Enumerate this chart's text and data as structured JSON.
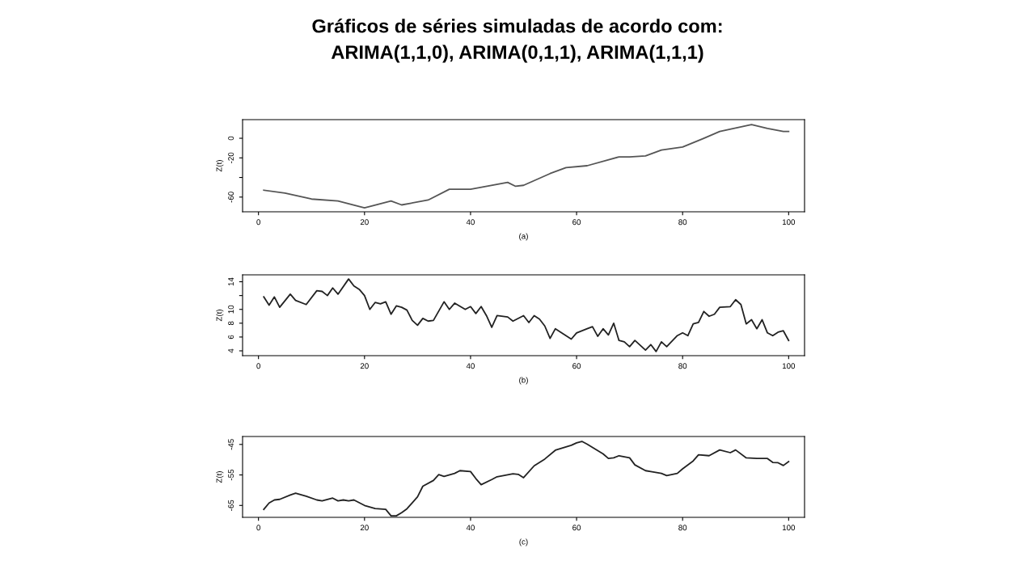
{
  "chart_data": [
    {
      "type": "line",
      "title": "Gráficos de séries simuladas de acordo com:\nARIMA(1,1,0), ARIMA(0,1,1), ARIMA(1,1,1)",
      "xlabel": "(a)",
      "ylabel": "Z(t)",
      "xlim": [
        -3,
        103
      ],
      "xticks": [
        0,
        20,
        40,
        60,
        80,
        100
      ],
      "ylim": [
        -75,
        19
      ],
      "yticks": [
        -60,
        {
          "value": -40,
          "label": null
        },
        -20,
        0
      ],
      "grid": false,
      "legend": false,
      "series": [
        {
          "color": "#555555",
          "x": [
            1,
            5,
            10,
            15,
            20,
            25,
            27,
            32,
            36,
            40,
            47,
            48.5,
            50,
            55,
            58,
            62,
            68,
            70,
            73,
            76,
            80,
            84,
            87,
            93,
            96,
            99,
            100
          ],
          "values": [
            -53,
            -56,
            -62,
            -64,
            -71,
            -64,
            -68,
            -63,
            -52,
            -52,
            -45,
            -49,
            -48,
            -36,
            -30,
            -28,
            -19,
            -19,
            -18,
            -12,
            -9,
            0,
            7,
            14,
            10,
            7,
            7
          ]
        }
      ]
    },
    {
      "type": "line",
      "xlabel": "(b)",
      "ylabel": "Z(t)",
      "xlim": [
        -3,
        103
      ],
      "xticks": [
        0,
        20,
        40,
        60,
        80,
        100
      ],
      "ylim": [
        3.3,
        15
      ],
      "yticks": [
        4,
        6,
        8,
        10,
        {
          "value": 12,
          "label": null
        },
        14
      ],
      "grid": false,
      "legend": false,
      "series": [
        {
          "color": "#222222",
          "x": [
            1,
            2,
            3,
            4,
            6,
            7,
            9,
            11,
            12,
            13,
            14,
            15,
            17,
            18,
            19,
            20,
            21,
            22,
            23,
            24,
            25,
            26,
            27,
            28,
            29,
            30,
            31,
            32,
            33,
            35,
            36,
            37,
            39,
            40,
            41,
            42,
            43,
            44,
            45,
            47,
            48,
            50,
            51,
            52,
            53,
            54,
            55,
            56,
            59,
            60,
            62,
            63,
            64,
            65,
            66,
            67,
            68,
            69,
            70,
            71,
            73,
            74,
            75,
            76,
            77,
            79,
            80,
            81,
            82,
            83,
            84,
            85,
            86,
            87,
            89,
            90,
            91,
            92,
            93,
            94,
            95,
            96,
            97,
            98,
            99,
            100
          ],
          "values": [
            11.8,
            10.6,
            11.8,
            10.3,
            12.2,
            11.3,
            10.7,
            12.7,
            12.6,
            12.0,
            13.1,
            12.2,
            14.4,
            13.4,
            12.9,
            12.0,
            10.0,
            11.0,
            10.8,
            11.1,
            9.3,
            10.5,
            10.3,
            9.9,
            8.4,
            7.7,
            8.7,
            8.3,
            8.4,
            11.1,
            10.0,
            10.9,
            10.0,
            10.4,
            9.4,
            10.4,
            9.1,
            7.4,
            9.1,
            8.9,
            8.3,
            9.1,
            8.1,
            9.1,
            8.6,
            7.6,
            5.8,
            7.2,
            5.7,
            6.6,
            7.2,
            7.5,
            6.1,
            7.2,
            6.3,
            8.0,
            5.5,
            5.3,
            4.6,
            5.5,
            4.1,
            4.9,
            3.9,
            5.3,
            4.6,
            6.2,
            6.6,
            6.2,
            7.9,
            8.1,
            9.7,
            9.0,
            9.3,
            10.3,
            10.4,
            11.4,
            10.7,
            7.9,
            8.5,
            7.2,
            8.5,
            6.6,
            6.2,
            6.7,
            6.9,
            5.5
          ]
        }
      ]
    },
    {
      "type": "line",
      "xlabel": "(c)",
      "ylabel": "Z(t)",
      "xlim": [
        -3,
        103
      ],
      "xticks": [
        0,
        20,
        40,
        60,
        80,
        100
      ],
      "ylim": [
        -68.9,
        -42.4
      ],
      "yticks": [
        -65,
        -55,
        -45
      ],
      "grid": false,
      "legend": false,
      "series": [
        {
          "color": "#222222",
          "x": [
            1,
            2,
            3,
            4,
            6,
            7,
            9,
            11,
            12,
            14,
            15,
            16,
            17,
            18,
            20,
            22,
            24,
            25,
            26,
            27,
            28,
            30,
            31,
            33,
            34,
            35,
            37,
            38,
            40,
            41,
            42,
            44,
            45,
            48,
            49,
            50,
            52,
            54,
            56,
            59,
            60,
            61,
            62,
            65,
            66,
            67,
            68,
            70,
            71,
            73,
            74,
            76,
            77,
            79,
            80,
            82,
            83,
            85,
            87,
            89,
            90,
            92,
            94,
            96,
            97,
            98,
            99,
            100
          ],
          "values": [
            -66.3,
            -64.2,
            -63.2,
            -63.0,
            -61.6,
            -61.0,
            -62.0,
            -63.2,
            -63.5,
            -62.6,
            -63.5,
            -63.2,
            -63.5,
            -63.2,
            -65.0,
            -66.0,
            -66.3,
            -68.4,
            -68.4,
            -67.4,
            -66.1,
            -62.2,
            -58.7,
            -56.8,
            -54.9,
            -55.5,
            -54.5,
            -53.6,
            -53.9,
            -56.2,
            -58.2,
            -56.5,
            -55.6,
            -54.6,
            -54.8,
            -55.9,
            -52.0,
            -49.8,
            -46.9,
            -45.3,
            -44.5,
            -44.0,
            -44.9,
            -48.1,
            -49.6,
            -49.4,
            -48.7,
            -49.4,
            -51.7,
            -53.6,
            -53.9,
            -54.5,
            -55.2,
            -54.5,
            -53.0,
            -50.4,
            -48.4,
            -48.7,
            -46.8,
            -47.7,
            -46.8,
            -49.4,
            -49.6,
            -49.6,
            -50.9,
            -51.0,
            -51.9,
            -50.6
          ]
        }
      ]
    }
  ]
}
